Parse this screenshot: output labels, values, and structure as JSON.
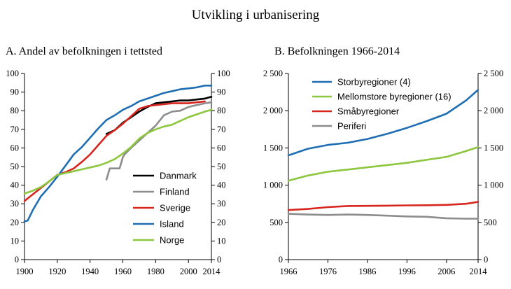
{
  "title": "Utvikling i urbanisering",
  "chart_data": [
    {
      "panel": "A",
      "type": "line",
      "title": "A.  Andel av befolkningen i tettsted",
      "xlim": [
        1900,
        2014
      ],
      "ylim": [
        0,
        100
      ],
      "x_ticks": [
        1900,
        1920,
        1940,
        1960,
        1980,
        2000,
        2014
      ],
      "y_ticks": [
        0,
        10,
        20,
        30,
        40,
        50,
        60,
        70,
        80,
        90,
        100
      ],
      "y_tick_labels": [
        "0",
        "10",
        "20",
        "30",
        "40",
        "50",
        "60",
        "70",
        "80",
        "90",
        "100"
      ],
      "grid": false,
      "legend_position": "bottom-right",
      "series": [
        {
          "name": "Danmark",
          "color": "#000000",
          "x": [
            1950,
            1955,
            1960,
            1965,
            1970,
            1975,
            1980,
            1985,
            1990,
            1995,
            2000,
            2005,
            2010,
            2014
          ],
          "y": [
            67.5,
            69.5,
            73.5,
            76.5,
            79.5,
            82,
            84,
            84.5,
            85,
            85.5,
            85.5,
            86,
            86.5,
            87.5
          ]
        },
        {
          "name": "Finland",
          "color": "#8c8c8c",
          "x": [
            1950,
            1952,
            1954,
            1958,
            1960,
            1961,
            1965,
            1970,
            1975,
            1980,
            1985,
            1990,
            1995,
            2000,
            2005,
            2010,
            2014
          ],
          "y": [
            43,
            49,
            49,
            49,
            55,
            56.5,
            60,
            64,
            68,
            72,
            77.5,
            79.5,
            80,
            82,
            83,
            84,
            84.5
          ]
        },
        {
          "name": "Sverige",
          "color": "#d7261e",
          "x": [
            1900,
            1905,
            1910,
            1915,
            1920,
            1925,
            1930,
            1935,
            1940,
            1945,
            1950,
            1955,
            1960,
            1965,
            1970,
            1975,
            1980,
            1985,
            1990,
            1995,
            2000,
            2005,
            2010
          ],
          "y": [
            31.5,
            35,
            38.5,
            42,
            45.5,
            47,
            49,
            52.5,
            56.5,
            61.5,
            66.5,
            69.5,
            73,
            77,
            81,
            82.5,
            83,
            83.5,
            84,
            84,
            84,
            84.5,
            85
          ]
        },
        {
          "name": "Island",
          "color": "#1f6db3",
          "x": [
            1900,
            1902,
            1905,
            1910,
            1915,
            1920,
            1925,
            1930,
            1935,
            1940,
            1945,
            1950,
            1955,
            1960,
            1965,
            1970,
            1975,
            1980,
            1985,
            1990,
            1995,
            2000,
            2005,
            2010,
            2014
          ],
          "y": [
            20.5,
            21,
            26.5,
            34,
            39,
            44.5,
            50.5,
            56.5,
            60.5,
            65.5,
            70.5,
            75,
            77.5,
            80.5,
            82.5,
            85,
            86.5,
            88,
            89.5,
            90.5,
            91.5,
            92,
            92.5,
            93.5,
            93.5
          ]
        },
        {
          "name": "Norge",
          "color": "#8dc63f",
          "x": [
            1900,
            1905,
            1910,
            1915,
            1920,
            1925,
            1930,
            1935,
            1940,
            1945,
            1950,
            1955,
            1960,
            1965,
            1970,
            1975,
            1980,
            1985,
            1990,
            1995,
            2000,
            2005,
            2010,
            2014
          ],
          "y": [
            35.5,
            37,
            39,
            42,
            45.5,
            46.5,
            47.5,
            48.5,
            49.5,
            50.5,
            52,
            54,
            57,
            60.5,
            65,
            68,
            70,
            71.5,
            72.5,
            74.5,
            76.5,
            78,
            79.5,
            80.5
          ]
        }
      ]
    },
    {
      "panel": "B",
      "type": "line",
      "title": "B.  Befolkningen 1966-2014",
      "xlim": [
        1966,
        2014
      ],
      "ylim": [
        0,
        2500
      ],
      "x_ticks": [
        1966,
        1976,
        1986,
        1996,
        2006,
        2014
      ],
      "y_ticks": [
        0,
        500,
        1000,
        1500,
        2000,
        2500
      ],
      "y_tick_labels": [
        "0",
        "500",
        "1 000",
        "1 500",
        "2 000",
        "2 500"
      ],
      "grid": false,
      "legend_position": "top-left",
      "series": [
        {
          "name": "Storbyregioner (4)",
          "color": "#1f6db3",
          "x": [
            1966,
            1971,
            1976,
            1981,
            1986,
            1991,
            1996,
            2001,
            2006,
            2011,
            2014
          ],
          "y": [
            1400,
            1490,
            1540,
            1570,
            1620,
            1690,
            1770,
            1860,
            1960,
            2140,
            2280
          ]
        },
        {
          "name": "Mellomstore byregioner (16)",
          "color": "#8dc63f",
          "x": [
            1966,
            1971,
            1976,
            1981,
            1986,
            1991,
            1996,
            2001,
            2006,
            2011,
            2014
          ],
          "y": [
            1060,
            1130,
            1180,
            1210,
            1240,
            1270,
            1300,
            1340,
            1380,
            1460,
            1510
          ]
        },
        {
          "name": "Småbyregioner",
          "color": "#d7261e",
          "x": [
            1966,
            1971,
            1976,
            1981,
            1986,
            1991,
            1996,
            2001,
            2006,
            2011,
            2014
          ],
          "y": [
            665,
            680,
            705,
            720,
            722,
            725,
            728,
            730,
            735,
            750,
            775
          ]
        },
        {
          "name": "Periferi",
          "color": "#8c8c8c",
          "x": [
            1966,
            1971,
            1976,
            1981,
            1986,
            1991,
            1996,
            2001,
            2006,
            2011,
            2014
          ],
          "y": [
            615,
            605,
            600,
            605,
            600,
            590,
            580,
            575,
            555,
            550,
            550
          ]
        }
      ]
    }
  ]
}
